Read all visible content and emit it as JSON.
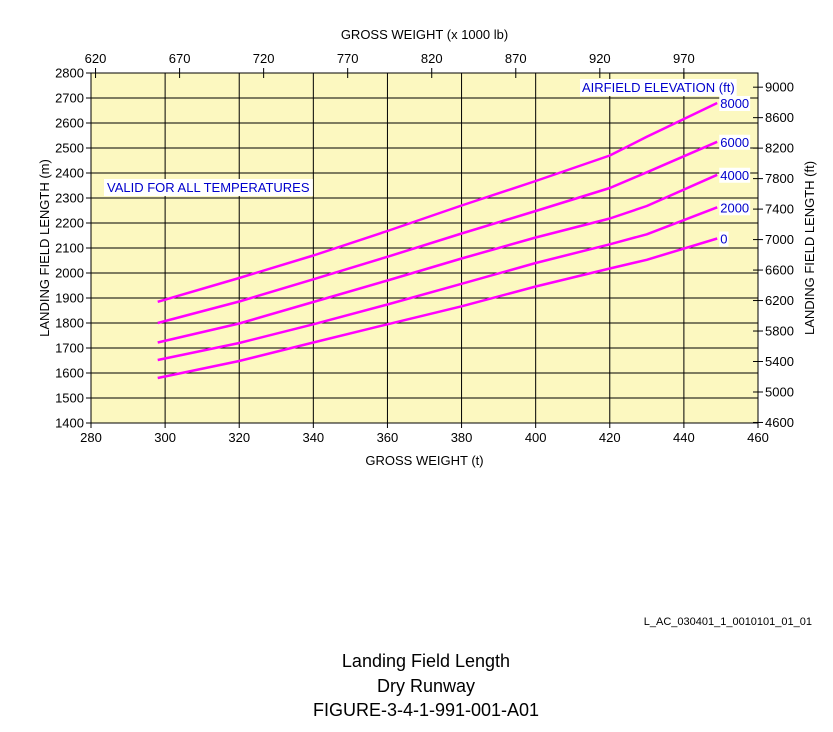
{
  "chart_data": {
    "type": "line",
    "xlabel": "GROSS WEIGHT (t)",
    "x2label": "GROSS WEIGHT (x 1000 lb)",
    "ylabel": "LANDING FIELD LENGTH (m)",
    "y2label": "LANDING FIELD LENGTH (ft)",
    "xlim": [
      280,
      460
    ],
    "ylim": [
      1400,
      2800
    ],
    "x2lim": [
      617.3,
      1014.1
    ],
    "y2lim": [
      4593,
      9186
    ],
    "x_ticks": [
      280,
      300,
      320,
      340,
      360,
      380,
      400,
      420,
      440,
      460
    ],
    "y_ticks": [
      1400,
      1500,
      1600,
      1700,
      1800,
      1900,
      2000,
      2100,
      2200,
      2300,
      2400,
      2500,
      2600,
      2700,
      2800
    ],
    "x2_ticks": [
      620,
      670,
      720,
      770,
      820,
      870,
      920,
      970
    ],
    "y2_ticks": [
      4600,
      5000,
      5400,
      5800,
      6200,
      6600,
      7000,
      7400,
      7800,
      8200,
      8600,
      9000
    ],
    "grid": true,
    "legend_title": "AIRFIELD ELEVATION (ft)",
    "annotation": "VALID FOR ALL TEMPERATURES",
    "series": [
      {
        "name": "0",
        "x": [
          298,
          320,
          340,
          360,
          380,
          400,
          420,
          430,
          449
        ],
        "y": [
          1580,
          1648,
          1722,
          1795,
          1867,
          1946,
          2018,
          2053,
          2138
        ]
      },
      {
        "name": "2000",
        "x": [
          298,
          320,
          340,
          360,
          380,
          400,
          420,
          430,
          449
        ],
        "y": [
          1652,
          1720,
          1795,
          1874,
          1957,
          2040,
          2115,
          2155,
          2263
        ]
      },
      {
        "name": "4000",
        "x": [
          298,
          320,
          340,
          360,
          380,
          400,
          420,
          430,
          449
        ],
        "y": [
          1722,
          1798,
          1884,
          1970,
          2058,
          2142,
          2218,
          2268,
          2393
        ]
      },
      {
        "name": "6000",
        "x": [
          298,
          320,
          340,
          360,
          380,
          400,
          420,
          430,
          449
        ],
        "y": [
          1800,
          1886,
          1975,
          2065,
          2158,
          2248,
          2340,
          2403,
          2525
        ]
      },
      {
        "name": "8000",
        "x": [
          298,
          320,
          340,
          360,
          380,
          400,
          420,
          430,
          449
        ],
        "y": [
          1885,
          1980,
          2070,
          2168,
          2270,
          2368,
          2470,
          2545,
          2680
        ]
      }
    ],
    "colors": {
      "plot_bg": "#FCF8C0",
      "curve": "#FF00FF",
      "label_text": "#0000CC",
      "grid": "#000000"
    }
  },
  "figure_ref": "L_AC_030401_1_0010101_01_01",
  "caption": [
    "Landing Field Length",
    "Dry Runway",
    "FIGURE-3-4-1-991-001-A01"
  ]
}
